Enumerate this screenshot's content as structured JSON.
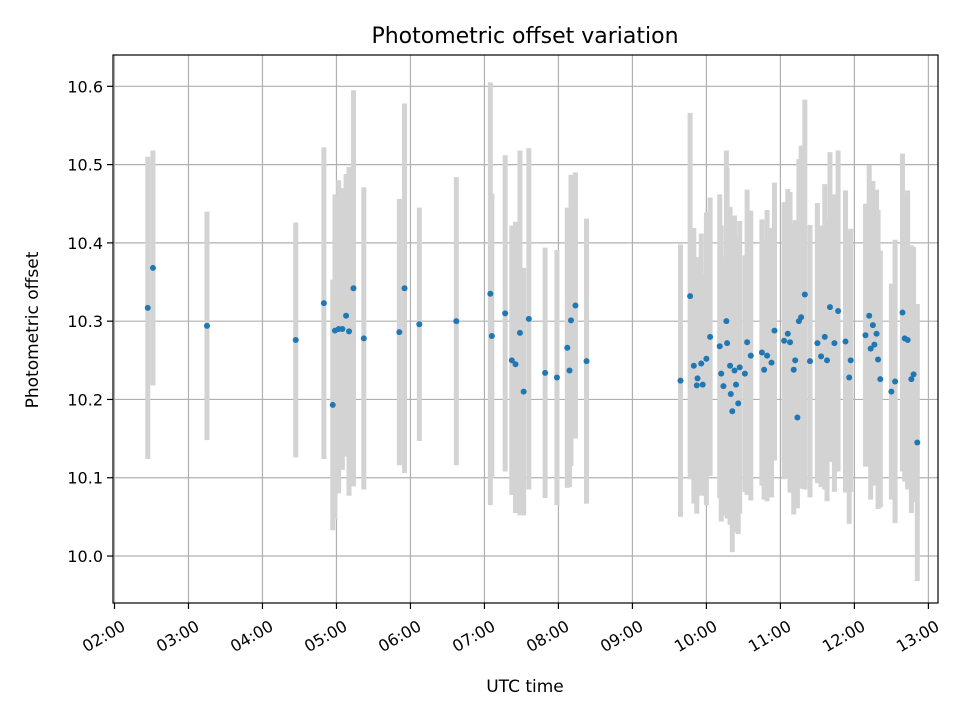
{
  "chart_data": {
    "type": "scatter",
    "title": "Photometric offset variation",
    "xlabel": "UTC time",
    "ylabel": "Photometric offset",
    "grid": true,
    "x_unit": "hours",
    "xlim": [
      1.98,
      13.13
    ],
    "ylim": [
      9.94,
      10.64
    ],
    "x_ticks": [
      2,
      3,
      4,
      5,
      6,
      7,
      8,
      9,
      10,
      11,
      12,
      13
    ],
    "x_tick_labels": [
      "02:00",
      "03:00",
      "04:00",
      "05:00",
      "06:00",
      "07:00",
      "08:00",
      "09:00",
      "10:00",
      "11:00",
      "12:00",
      "13:00"
    ],
    "y_ticks": [
      10.0,
      10.1,
      10.2,
      10.3,
      10.4,
      10.5,
      10.6
    ],
    "y_tick_labels": [
      "10.0",
      "10.1",
      "10.2",
      "10.3",
      "10.4",
      "10.5",
      "10.6"
    ],
    "point_color": "#1f77b4",
    "errorbar_color": "#d3d3d3",
    "series": [
      {
        "name": "Photometric offset",
        "points": [
          [
            2.45,
            10.317,
            10.124,
            10.51
          ],
          [
            2.52,
            10.368,
            10.218,
            10.518
          ],
          [
            3.25,
            10.294,
            10.148,
            10.44
          ],
          [
            4.45,
            10.276,
            10.126,
            10.426
          ],
          [
            4.83,
            10.323,
            10.124,
            10.522
          ],
          [
            4.95,
            10.193,
            10.033,
            10.353
          ],
          [
            4.98,
            10.288,
            10.047,
            10.462
          ],
          [
            5.03,
            10.29,
            10.08,
            10.48
          ],
          [
            5.08,
            10.29,
            10.11,
            10.47
          ],
          [
            5.13,
            10.307,
            10.127,
            10.488
          ],
          [
            5.17,
            10.287,
            10.077,
            10.497
          ],
          [
            5.23,
            10.342,
            10.089,
            10.595
          ],
          [
            5.37,
            10.278,
            10.085,
            10.471
          ],
          [
            5.85,
            10.286,
            10.116,
            10.456
          ],
          [
            5.92,
            10.342,
            10.106,
            10.578
          ],
          [
            6.12,
            10.296,
            10.147,
            10.445
          ],
          [
            6.62,
            10.3,
            10.116,
            10.484
          ],
          [
            7.08,
            10.335,
            10.065,
            10.605
          ],
          [
            7.1,
            10.281,
            10.099,
            10.463
          ],
          [
            7.28,
            10.31,
            10.108,
            10.512
          ],
          [
            7.37,
            10.25,
            10.078,
            10.422
          ],
          [
            7.42,
            10.245,
            10.055,
            10.427
          ],
          [
            7.48,
            10.285,
            10.052,
            10.518
          ],
          [
            7.53,
            10.21,
            10.052,
            10.368
          ],
          [
            7.6,
            10.303,
            10.085,
            10.521
          ],
          [
            7.82,
            10.234,
            10.074,
            10.394
          ],
          [
            7.98,
            10.228,
            10.065,
            10.391
          ],
          [
            8.12,
            10.266,
            10.087,
            10.445
          ],
          [
            8.15,
            10.237,
            10.088,
            10.386
          ],
          [
            8.17,
            10.301,
            10.115,
            10.487
          ],
          [
            8.23,
            10.32,
            10.15,
            10.49
          ],
          [
            8.38,
            10.249,
            10.067,
            10.431
          ],
          [
            9.65,
            10.224,
            10.05,
            10.398
          ],
          [
            9.78,
            10.332,
            10.098,
            10.566
          ],
          [
            9.83,
            10.243,
            10.067,
            10.419
          ],
          [
            9.87,
            10.218,
            10.054,
            10.382
          ],
          [
            9.88,
            10.227,
            10.077,
            10.377
          ],
          [
            9.93,
            10.246,
            10.08,
            10.412
          ],
          [
            9.95,
            10.219,
            10.077,
            10.361
          ],
          [
            10.0,
            10.252,
            10.065,
            10.439
          ],
          [
            10.05,
            10.28,
            10.102,
            10.458
          ],
          [
            10.18,
            10.268,
            10.074,
            10.462
          ],
          [
            10.2,
            10.233,
            10.044,
            10.422
          ],
          [
            10.23,
            10.217,
            10.052,
            10.382
          ],
          [
            10.27,
            10.3,
            10.082,
            10.518
          ],
          [
            10.28,
            10.272,
            10.048,
            10.496
          ],
          [
            10.32,
            10.243,
            10.04,
            10.446
          ],
          [
            10.33,
            10.207,
            10.056,
            10.358
          ],
          [
            10.35,
            10.185,
            10.005,
            10.365
          ],
          [
            10.38,
            10.237,
            10.039,
            10.435
          ],
          [
            10.4,
            10.219,
            10.03,
            10.408
          ],
          [
            10.43,
            10.195,
            10.028,
            10.362
          ],
          [
            10.45,
            10.241,
            10.054,
            10.428
          ],
          [
            10.52,
            10.233,
            10.082,
            10.384
          ],
          [
            10.55,
            10.273,
            10.078,
            10.468
          ],
          [
            10.6,
            10.256,
            10.071,
            10.441
          ],
          [
            10.75,
            10.26,
            10.09,
            10.43
          ],
          [
            10.78,
            10.238,
            10.072,
            10.404
          ],
          [
            10.82,
            10.256,
            10.07,
            10.442
          ],
          [
            10.88,
            10.247,
            10.075,
            10.419
          ],
          [
            10.92,
            10.288,
            10.122,
            10.477
          ],
          [
            11.05,
            10.275,
            10.098,
            10.452
          ],
          [
            11.1,
            10.284,
            10.099,
            10.469
          ],
          [
            11.13,
            10.273,
            10.081,
            10.465
          ],
          [
            11.18,
            10.238,
            10.053,
            10.423
          ],
          [
            11.2,
            10.25,
            10.071,
            10.429
          ],
          [
            11.23,
            10.177,
            10.061,
            10.293
          ],
          [
            11.25,
            10.3,
            10.093,
            10.507
          ],
          [
            11.28,
            10.305,
            10.086,
            10.524
          ],
          [
            11.33,
            10.334,
            10.085,
            10.583
          ],
          [
            11.4,
            10.249,
            10.075,
            10.423
          ],
          [
            11.5,
            10.272,
            10.093,
            10.451
          ],
          [
            11.55,
            10.255,
            10.088,
            10.422
          ],
          [
            11.6,
            10.28,
            10.085,
            10.475
          ],
          [
            11.63,
            10.25,
            10.07,
            10.43
          ],
          [
            11.67,
            10.318,
            10.12,
            10.516
          ],
          [
            11.73,
            10.272,
            10.082,
            10.462
          ],
          [
            11.78,
            10.313,
            10.108,
            10.518
          ],
          [
            11.88,
            10.274,
            10.081,
            10.467
          ],
          [
            11.93,
            10.228,
            10.041,
            10.415
          ],
          [
            11.95,
            10.25,
            10.082,
            10.418
          ],
          [
            12.15,
            10.282,
            10.114,
            10.45
          ],
          [
            12.2,
            10.307,
            10.115,
            10.499
          ],
          [
            12.22,
            10.265,
            10.072,
            10.458
          ],
          [
            12.25,
            10.295,
            10.111,
            10.479
          ],
          [
            12.27,
            10.27,
            10.09,
            10.45
          ],
          [
            12.3,
            10.284,
            10.1,
            10.468
          ],
          [
            12.32,
            10.251,
            10.06,
            10.442
          ],
          [
            12.35,
            10.226,
            10.062,
            10.39
          ],
          [
            12.5,
            10.21,
            10.072,
            10.348
          ],
          [
            12.55,
            10.223,
            10.042,
            10.404
          ],
          [
            12.65,
            10.311,
            10.108,
            10.514
          ],
          [
            12.68,
            10.278,
            10.095,
            10.461
          ],
          [
            12.72,
            10.276,
            10.085,
            10.467
          ],
          [
            12.77,
            10.226,
            10.055,
            10.397
          ],
          [
            12.8,
            10.232,
            10.069,
            10.395
          ],
          [
            12.85,
            10.145,
            9.968,
            10.322
          ]
        ]
      }
    ]
  }
}
